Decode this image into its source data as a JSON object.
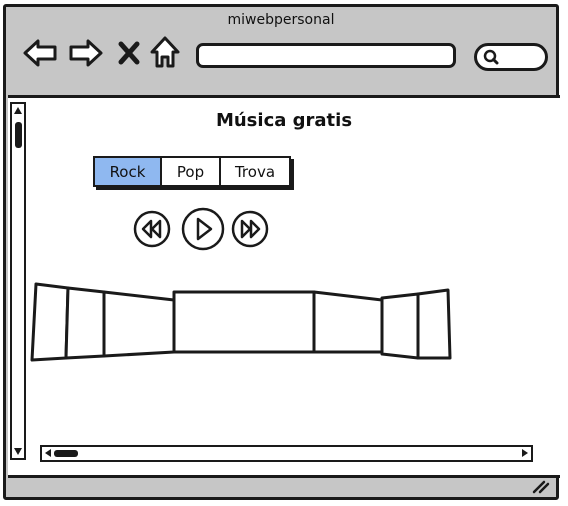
{
  "window": {
    "title": "miwebpersonal"
  },
  "toolbar": {
    "icons": [
      "back-arrow-icon",
      "forward-arrow-icon",
      "close-icon",
      "home-icon"
    ],
    "address_value": "",
    "search_value": ""
  },
  "page": {
    "title": "Música gratis",
    "tabs": [
      {
        "label": "Rock",
        "selected": true
      },
      {
        "label": "Pop",
        "selected": false
      },
      {
        "label": "Trova",
        "selected": false
      }
    ],
    "player": {
      "icons": [
        "rewind-icon",
        "play-icon",
        "fast-forward-icon"
      ]
    },
    "coverflow": {
      "items": 7
    }
  },
  "colors": {
    "chrome": "#c6c6c6",
    "accent": "#8fb8f0",
    "ink": "#1a1a1a"
  }
}
